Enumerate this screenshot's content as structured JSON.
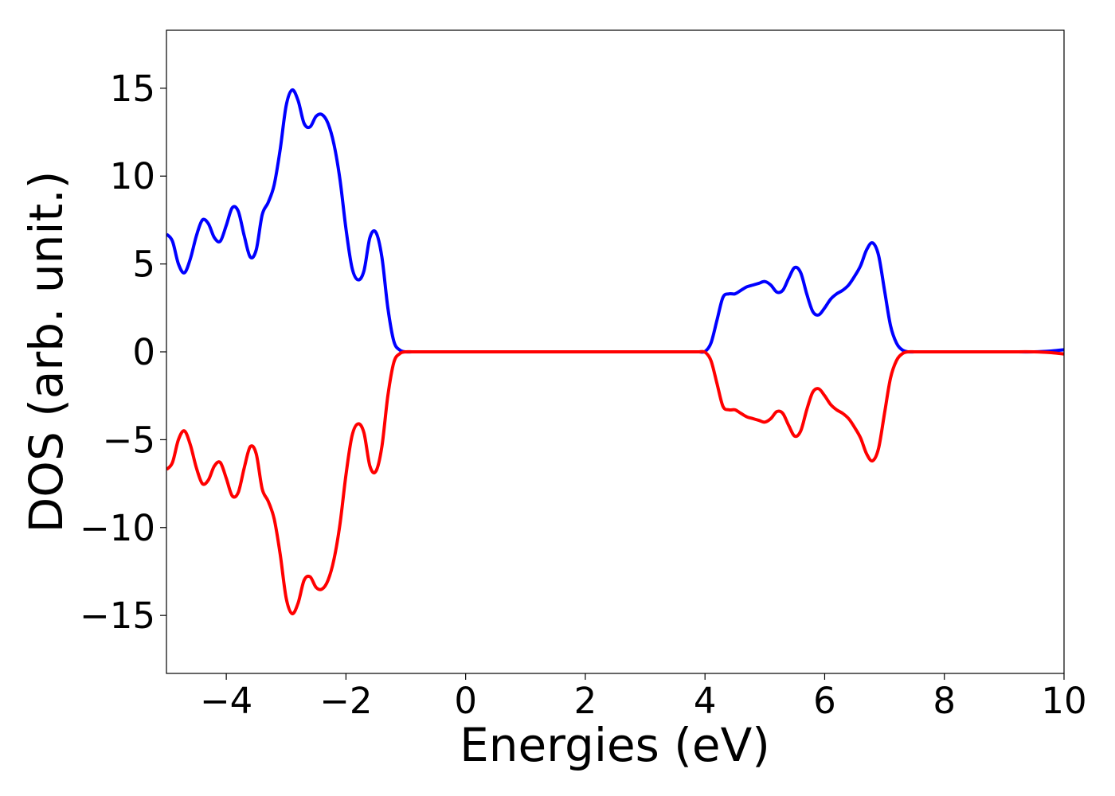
{
  "chart_data": {
    "type": "line",
    "title": "",
    "xlabel": "Energies (eV)",
    "ylabel": "DOS (arb. unit.)",
    "xlim": [
      -5,
      10
    ],
    "ylim": [
      -18.3,
      18.3
    ],
    "grid": false,
    "legend": "none",
    "x_ticks": [
      -4,
      -2,
      0,
      2,
      4,
      6,
      8,
      10
    ],
    "x_tick_labels": [
      "−4",
      "−2",
      "0",
      "2",
      "4",
      "6",
      "8",
      "10"
    ],
    "y_ticks": [
      15,
      10,
      5,
      0,
      -5,
      -10,
      -15
    ],
    "y_tick_labels": [
      "15",
      "10",
      "5",
      "0",
      "−5",
      "−10",
      "−15"
    ],
    "x": [
      -5.0,
      -4.9,
      -4.8,
      -4.7,
      -4.6,
      -4.5,
      -4.4,
      -4.3,
      -4.2,
      -4.1,
      -4.0,
      -3.9,
      -3.8,
      -3.7,
      -3.6,
      -3.5,
      -3.4,
      -3.3,
      -3.2,
      -3.1,
      -3.0,
      -2.9,
      -2.8,
      -2.7,
      -2.6,
      -2.5,
      -2.4,
      -2.3,
      -2.2,
      -2.1,
      -2.0,
      -1.9,
      -1.8,
      -1.7,
      -1.6,
      -1.5,
      -1.4,
      -1.3,
      -1.2,
      -1.1,
      -1.0,
      -0.9,
      -0.8,
      -0.7,
      -0.6,
      -0.5,
      0.0,
      1.0,
      2.0,
      3.0,
      3.8,
      3.9,
      4.0,
      4.1,
      4.2,
      4.3,
      4.4,
      4.5,
      4.6,
      4.7,
      4.8,
      4.9,
      5.0,
      5.1,
      5.2,
      5.3,
      5.4,
      5.5,
      5.6,
      5.7,
      5.8,
      5.9,
      6.0,
      6.1,
      6.2,
      6.3,
      6.4,
      6.5,
      6.6,
      6.7,
      6.8,
      6.9,
      7.0,
      7.1,
      7.2,
      7.3,
      7.4,
      7.5,
      7.6,
      7.7,
      8.0,
      9.0,
      9.5,
      9.8,
      10.0
    ],
    "series": [
      {
        "color": "#0000ff",
        "values": [
          6.7,
          6.3,
          5.0,
          4.5,
          5.3,
          6.6,
          7.5,
          7.3,
          6.5,
          6.3,
          7.2,
          8.2,
          8.0,
          6.6,
          5.4,
          5.8,
          7.8,
          8.5,
          9.5,
          11.5,
          14.0,
          14.9,
          14.3,
          13.0,
          12.8,
          13.4,
          13.5,
          13.0,
          11.8,
          9.8,
          7.0,
          4.8,
          4.1,
          4.6,
          6.5,
          6.8,
          5.4,
          2.5,
          0.6,
          0.1,
          0.0,
          0.0,
          0.0,
          0.0,
          0.0,
          0.0,
          0.0,
          0.0,
          0.0,
          0.0,
          0.0,
          0.0,
          0.02,
          0.5,
          1.8,
          3.1,
          3.3,
          3.3,
          3.5,
          3.7,
          3.8,
          3.9,
          4.0,
          3.8,
          3.4,
          3.5,
          4.2,
          4.8,
          4.5,
          3.3,
          2.3,
          2.1,
          2.5,
          3.0,
          3.3,
          3.5,
          3.8,
          4.3,
          4.9,
          5.8,
          6.2,
          5.5,
          3.5,
          1.5,
          0.5,
          0.1,
          0.0,
          0.0,
          0.0,
          0.0,
          0.0,
          0.0,
          0.0,
          0.05,
          0.12
        ]
      },
      {
        "color": "#ff0000",
        "values": [
          -6.7,
          -6.3,
          -5.0,
          -4.5,
          -5.3,
          -6.6,
          -7.5,
          -7.3,
          -6.5,
          -6.3,
          -7.2,
          -8.2,
          -8.0,
          -6.6,
          -5.4,
          -5.8,
          -7.8,
          -8.5,
          -9.5,
          -11.5,
          -14.0,
          -14.9,
          -14.3,
          -13.0,
          -12.8,
          -13.4,
          -13.5,
          -13.0,
          -11.8,
          -9.8,
          -7.0,
          -4.8,
          -4.1,
          -4.6,
          -6.5,
          -6.8,
          -5.4,
          -2.5,
          -0.6,
          -0.1,
          0.0,
          0.0,
          0.0,
          0.0,
          0.0,
          0.0,
          0.0,
          0.0,
          0.0,
          0.0,
          0.0,
          0.0,
          -0.02,
          -0.5,
          -1.8,
          -3.1,
          -3.3,
          -3.3,
          -3.5,
          -3.7,
          -3.8,
          -3.9,
          -4.0,
          -3.8,
          -3.4,
          -3.5,
          -4.2,
          -4.8,
          -4.5,
          -3.3,
          -2.3,
          -2.1,
          -2.5,
          -3.0,
          -3.3,
          -3.5,
          -3.8,
          -4.3,
          -4.9,
          -5.8,
          -6.2,
          -5.5,
          -3.5,
          -1.5,
          -0.5,
          -0.1,
          0.0,
          0.0,
          0.0,
          0.0,
          0.0,
          0.0,
          0.0,
          -0.05,
          -0.12
        ]
      }
    ]
  }
}
